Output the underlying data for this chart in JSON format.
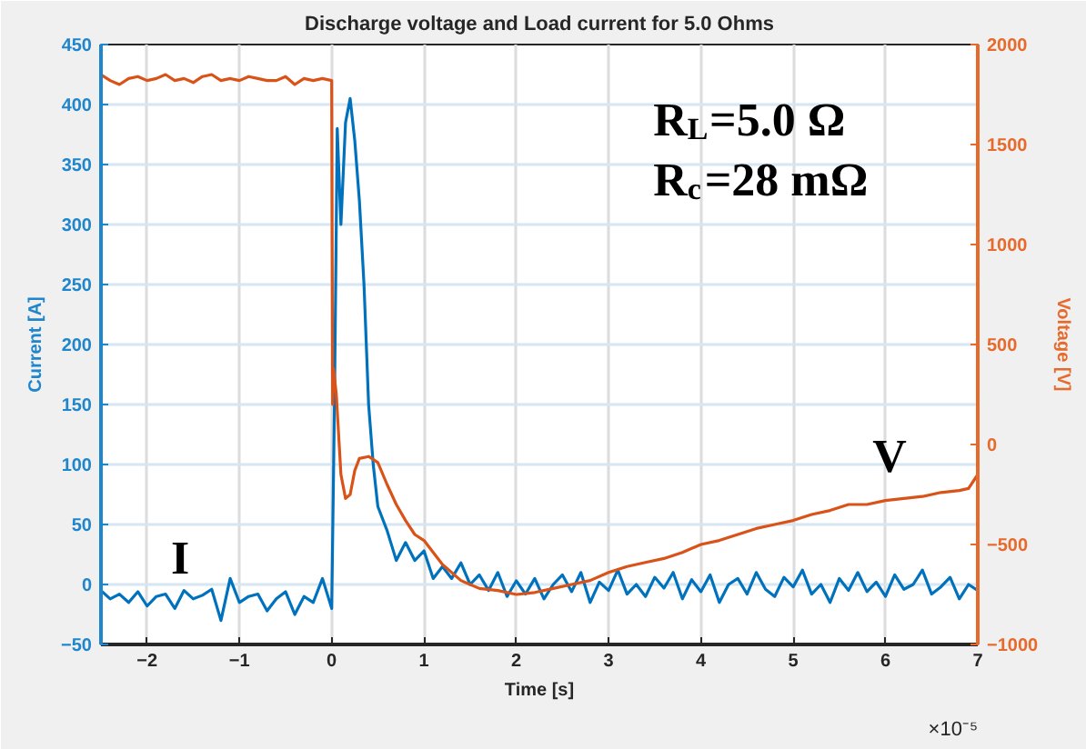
{
  "chart_data": {
    "type": "line",
    "title": "Discharge voltage and Load current for 5.0 Ohms",
    "xlabel": "Time [s]",
    "ylabel": "Current [A]",
    "y2label": "Voltage [V]",
    "annotations": [
      "×10⁻⁵",
      "R$_{L}$=5.0 Ω",
      "R$_{c}$=28 mΩ",
      "I",
      "V"
    ],
    "xlim": [
      -2.5,
      7
    ],
    "xticks": [
      -2,
      -1,
      0,
      1,
      2,
      3,
      4,
      5,
      6,
      7
    ],
    "ylim": [
      -50,
      450
    ],
    "yticks": [
      -50,
      0,
      50,
      100,
      150,
      200,
      250,
      300,
      350,
      400,
      450
    ],
    "y2lim": [
      -1000,
      2000
    ],
    "y2ticks": [
      -1000,
      -500,
      0,
      500,
      1000,
      1500,
      2000
    ],
    "grid": true,
    "marker": "none",
    "line_style": "solid",
    "series": [
      {
        "color": "#0072bd",
        "x": [
          -2.5,
          -2.4,
          -2.3,
          -2.2,
          -2.1,
          -2.0,
          -1.9,
          -1.8,
          -1.7,
          -1.6,
          -1.5,
          -1.4,
          -1.3,
          -1.2,
          -1.1,
          -1.0,
          -0.9,
          -0.8,
          -0.7,
          -0.6,
          -0.5,
          -0.4,
          -0.3,
          -0.2,
          -0.1,
          0,
          0.03,
          0.06,
          0.1,
          0.15,
          0.2,
          0.25,
          0.3,
          0.35,
          0.4,
          0.45,
          0.5,
          0.6,
          0.7,
          0.8,
          0.9,
          1.0,
          1.1,
          1.2,
          1.3,
          1.4,
          1.5,
          1.6,
          1.7,
          1.8,
          1.9,
          2.0,
          2.1,
          2.2,
          2.3,
          2.4,
          2.5,
          2.6,
          2.7,
          2.8,
          2.9,
          3.0,
          3.1,
          3.2,
          3.3,
          3.4,
          3.5,
          3.6,
          3.7,
          3.8,
          3.9,
          4.0,
          4.1,
          4.2,
          4.3,
          4.4,
          4.5,
          4.6,
          4.7,
          4.8,
          4.9,
          5.0,
          5.1,
          5.2,
          5.3,
          5.4,
          5.5,
          5.6,
          5.7,
          5.8,
          5.9,
          6.0,
          6.1,
          6.2,
          6.3,
          6.4,
          6.5,
          6.6,
          6.7,
          6.8,
          6.9,
          7.0
        ],
        "values": [
          -5,
          -12,
          -8,
          -15,
          -6,
          -18,
          -10,
          -8,
          -20,
          -5,
          -12,
          -9,
          -4,
          -30,
          5,
          -15,
          -10,
          -8,
          -22,
          -12,
          -6,
          -25,
          -10,
          -15,
          5,
          -20,
          150,
          380,
          300,
          385,
          405,
          370,
          320,
          250,
          150,
          100,
          65,
          45,
          20,
          35,
          20,
          28,
          5,
          15,
          5,
          18,
          0,
          8,
          -5,
          10,
          -10,
          3,
          -8,
          5,
          -12,
          0,
          8,
          -6,
          10,
          -15,
          2,
          -5,
          12,
          -8,
          0,
          -10,
          6,
          -3,
          10,
          -12,
          4,
          -6,
          8,
          -15,
          0,
          5,
          -8,
          10,
          -4,
          -10,
          6,
          -2,
          12,
          -8,
          0,
          -15,
          5,
          -5,
          10,
          -6,
          2,
          -10,
          8,
          -4,
          0,
          12,
          -8,
          -2,
          6,
          -12,
          0,
          -5
        ]
      },
      {
        "color": "#d95319",
        "axis": "y2",
        "x": [
          -2.5,
          -2.4,
          -2.3,
          -2.2,
          -2.1,
          -2.0,
          -1.9,
          -1.8,
          -1.7,
          -1.6,
          -1.5,
          -1.4,
          -1.3,
          -1.2,
          -1.1,
          -1.0,
          -0.9,
          -0.8,
          -0.7,
          -0.6,
          -0.5,
          -0.4,
          -0.3,
          -0.2,
          -0.1,
          0,
          0.01,
          0.02,
          0.05,
          0.1,
          0.15,
          0.2,
          0.25,
          0.3,
          0.4,
          0.5,
          0.6,
          0.7,
          0.8,
          0.9,
          1.0,
          1.2,
          1.4,
          1.6,
          1.8,
          2.0,
          2.2,
          2.4,
          2.6,
          2.8,
          3.0,
          3.2,
          3.4,
          3.6,
          3.8,
          4.0,
          4.2,
          4.4,
          4.6,
          4.8,
          5.0,
          5.2,
          5.4,
          5.6,
          5.8,
          6.0,
          6.2,
          6.4,
          6.6,
          6.8,
          6.9,
          7.0
        ],
        "values": [
          1850,
          1820,
          1800,
          1830,
          1840,
          1820,
          1830,
          1850,
          1820,
          1830,
          1810,
          1840,
          1850,
          1820,
          1830,
          1820,
          1840,
          1830,
          1820,
          1820,
          1840,
          1800,
          1830,
          1820,
          1830,
          1820,
          200,
          380,
          250,
          -150,
          -270,
          -250,
          -130,
          -70,
          -60,
          -90,
          -200,
          -300,
          -380,
          -450,
          -480,
          -600,
          -680,
          -720,
          -730,
          -750,
          -740,
          -720,
          -700,
          -680,
          -640,
          -610,
          -590,
          -570,
          -540,
          -500,
          -480,
          -450,
          -420,
          -400,
          -380,
          -350,
          -330,
          -300,
          -300,
          -280,
          -270,
          -260,
          -240,
          -230,
          -220,
          -150
        ]
      }
    ]
  }
}
